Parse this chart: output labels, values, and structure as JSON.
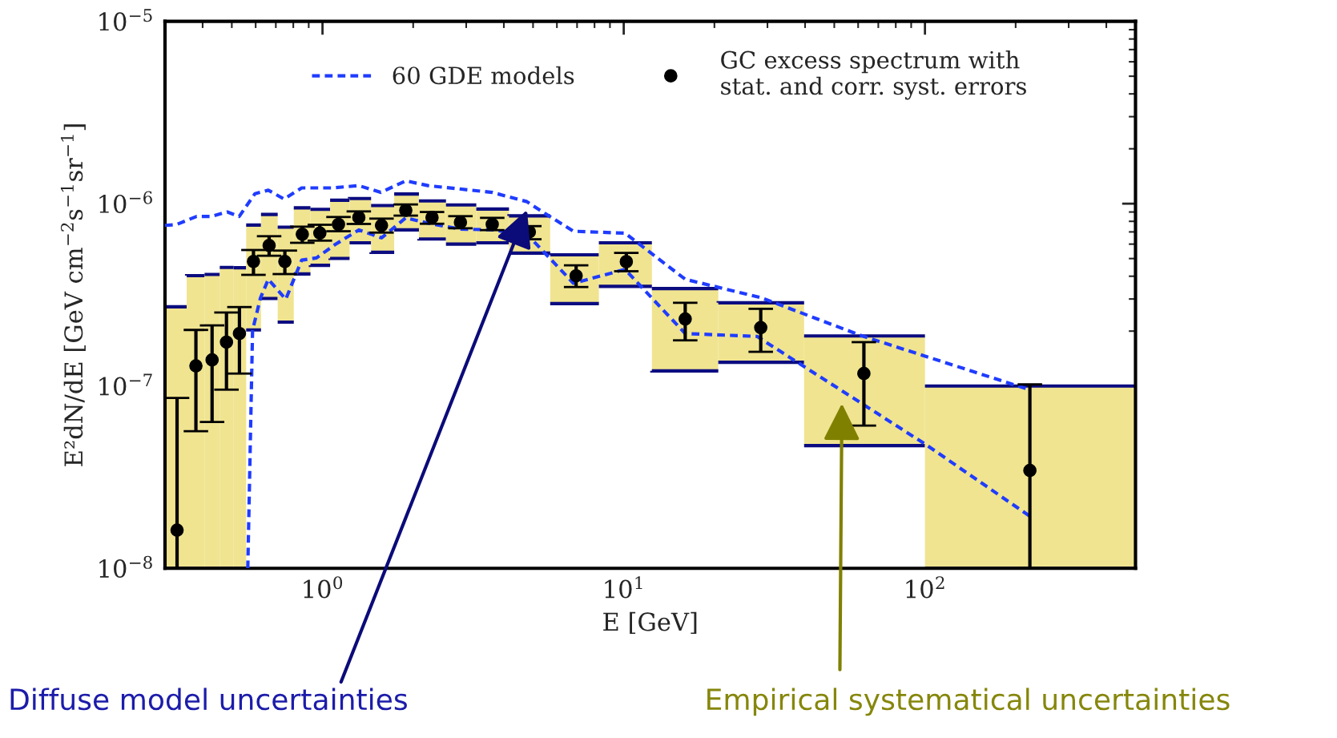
{
  "chart_data": {
    "type": "scatter",
    "xlabel": "E [GeV]",
    "ylabel": "E²dN/dE [GeV cm$^{−2}$s$^{−1}$sr$^{−1}$]",
    "log": "xy",
    "xlim": [
      0.3,
      500
    ],
    "ylim": [
      1e-08,
      1e-05
    ],
    "xticks": [
      {
        "value": 1,
        "label": "10$^{0}$"
      },
      {
        "value": 10,
        "label": "10$^{1}$"
      },
      {
        "value": 100,
        "label": "10$^{2}$"
      }
    ],
    "yticks": [
      {
        "value": 1e-08,
        "label": "10$^{−8}$"
      },
      {
        "value": 1e-07,
        "label": "10$^{−7}$"
      },
      {
        "value": 1e-06,
        "label": "10$^{−6}$"
      },
      {
        "value": 1e-05,
        "label": "10$^{−5}$"
      }
    ],
    "grid": false,
    "legend": "top",
    "series": [
      {
        "type": "histogram",
        "color": "#f0e490",
        "bins": [
          0.3,
          0.354,
          0.406,
          0.456,
          0.507,
          0.558,
          0.625,
          0.71,
          0.803,
          0.912,
          1.06,
          1.23,
          1.45,
          1.73,
          2.09,
          2.57,
          3.24,
          4.16,
          5.7,
          8.27,
          12.4,
          20.6,
          39.7,
          100,
          500
        ],
        "base": [
          1e-08,
          1e-08,
          1e-08,
          1e-08,
          1e-08,
          2.03e-07,
          3.02e-07,
          2.24e-07,
          4.12e-07,
          4.59e-07,
          5.01e-07,
          6.1e-07,
          5.41e-07,
          7.18e-07,
          6.4e-07,
          6e-07,
          6.1e-07,
          5.36e-07,
          2.83e-07,
          3.52e-07,
          1.21e-07,
          1.35e-07,
          4.71e-08,
          1e-08
        ],
        "values": [
          2.62e-07,
          3.93e-07,
          3.99e-07,
          4.37e-07,
          4.35e-07,
          5.6e-07,
          5.71e-07,
          5.19e-07,
          5.36e-07,
          4.72e-07,
          5.44e-07,
          4.57e-07,
          4.36e-07,
          4.12e-07,
          3.95e-07,
          3.84e-07,
          3.25e-07,
          3.21e-07,
          2.41e-07,
          2.58e-07,
          2.21e-07,
          1.51e-07,
          1.41e-07,
          9e-08
        ]
      },
      {
        "type": "line",
        "name": "60 GDE models",
        "color": "#1f3cff",
        "line_style": "dashed",
        "x": [
          0.3,
          0.327,
          0.382,
          0.427,
          0.483,
          0.529,
          0.597,
          0.661,
          0.746,
          0.853,
          1.08,
          1.32,
          1.56,
          1.89,
          2.24,
          3.66,
          4.77,
          5.5,
          6.81,
          10.1,
          16.0,
          28.6,
          61.4,
          223
        ],
        "values": [
          7.6e-07,
          7.68e-07,
          8.51e-07,
          8.51e-07,
          9.01e-07,
          8.51e-07,
          1.135e-06,
          1.185e-06,
          1.06e-06,
          1.22e-06,
          1.22e-06,
          1.256e-06,
          1.153e-06,
          1.334e-06,
          1.256e-06,
          1.153e-06,
          1.026e-06,
          8.8e-07,
          7.06e-07,
          6.89e-07,
          3.85e-07,
          3.05e-07,
          1.89e-07,
          9.53e-08
        ]
      },
      {
        "type": "line",
        "color": "#1f3cff",
        "line_style": "dashed",
        "x": [
          0.565,
          0.586,
          0.622,
          0.661,
          0.755,
          0.853,
          0.955,
          1.1,
          1.32,
          1.57,
          1.89,
          2.24,
          2.86,
          3.73,
          4.86,
          6.81,
          10.1,
          16.0,
          27.7,
          100,
          223
        ],
        "values": [
          1e-08,
          2.02e-07,
          3.03e-07,
          3.85e-07,
          2.99e-07,
          4.9e-07,
          5.04e-07,
          5.96e-07,
          7.18e-07,
          6.49e-07,
          8.36e-07,
          7.82e-07,
          7.26e-07,
          7.18e-07,
          6.59e-07,
          3.66e-07,
          4.36e-07,
          1.94e-07,
          1.87e-07,
          4.81e-08,
          1.93e-08
        ]
      },
      {
        "name": "GC excess spectrum with\nstat. and corr. syst. errors",
        "color": "#000000",
        "marker": "circle",
        "x": [
          0.329,
          0.38,
          0.43,
          0.48,
          0.53,
          0.59,
          0.665,
          0.75,
          0.857,
          0.98,
          1.13,
          1.32,
          1.57,
          1.89,
          2.31,
          2.87,
          3.66,
          4.86,
          6.95,
          10.2,
          16.0,
          28.5,
          62.7,
          223
        ],
        "values": [
          1.62e-08,
          1.29e-07,
          1.39e-07,
          1.74e-07,
          1.94e-07,
          4.82e-07,
          5.9e-07,
          4.82e-07,
          6.8e-07,
          6.9e-07,
          7.7e-07,
          8.4e-07,
          7.6e-07,
          9.2e-07,
          8.4e-07,
          7.9e-07,
          7.7e-07,
          7e-07,
          4.02e-07,
          4.81e-07,
          2.33e-07,
          2.09e-07,
          1.17e-07,
          3.44e-08
        ],
        "errors": [
          [
            1e-08,
            8.6e-08
          ],
          [
            5.65e-08,
            2.03e-07
          ],
          [
            6.35e-08,
            2.15e-07
          ],
          [
            9.55e-08,
            2.53e-07
          ],
          [
            1.17e-07,
            2.71e-07
          ],
          [
            4.07e-07,
            5.57e-07
          ],
          [
            5.18e-07,
            6.63e-07
          ],
          [
            4.11e-07,
            5.53e-07
          ],
          [
            6.1e-07,
            7.48e-07
          ],
          [
            6.27e-07,
            7.66e-07
          ],
          [
            7.06e-07,
            8.45e-07
          ],
          [
            7.74e-07,
            9.07e-07
          ],
          [
            6.94e-07,
            8.28e-07
          ],
          [
            8.6e-07,
            9.9e-07
          ],
          [
            7.76e-07,
            9e-07
          ],
          [
            7.33e-07,
            8.54e-07
          ],
          [
            7.16e-07,
            8.36e-07
          ],
          [
            6.38e-07,
            7.53e-07
          ],
          [
            3.49e-07,
            4.59e-07
          ],
          [
            4.26e-07,
            5.37e-07
          ],
          [
            1.78e-07,
            2.86e-07
          ],
          [
            1.54e-07,
            2.65e-07
          ],
          [
            6.07e-08,
            1.74e-07
          ],
          [
            1e-08,
            1.02e-07
          ]
        ]
      }
    ],
    "annotations": [
      "Diffuse model uncertainties",
      "Empirical systematical uncertainties"
    ]
  }
}
